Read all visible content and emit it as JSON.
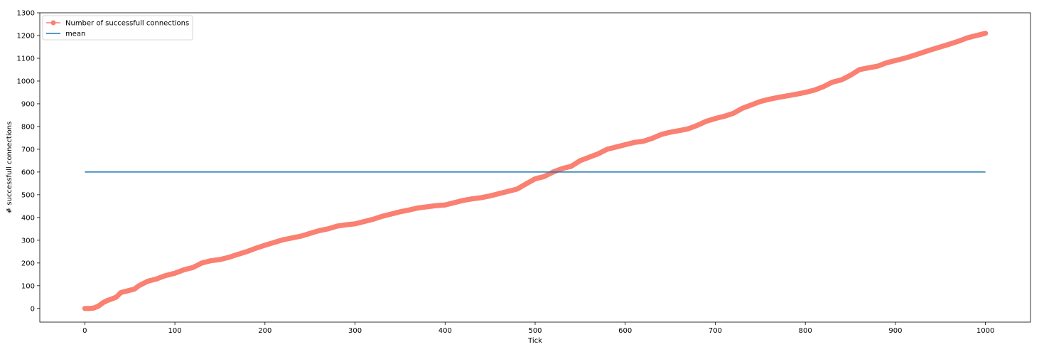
{
  "chart_data": {
    "type": "line",
    "title": "",
    "xlabel": "Tick",
    "ylabel": "# successfull connections",
    "xlim": [
      -50,
      1050
    ],
    "ylim": [
      -60,
      1300
    ],
    "x_ticks": [
      0,
      100,
      200,
      300,
      400,
      500,
      600,
      700,
      800,
      900,
      1000
    ],
    "y_ticks": [
      0,
      100,
      200,
      300,
      400,
      500,
      600,
      700,
      800,
      900,
      1000,
      1100,
      1200,
      1300
    ],
    "grid": false,
    "legend_position": "upper left",
    "series": [
      {
        "name": "Number of successfull connections",
        "kind": "line-with-markers",
        "color": "#fa8072",
        "x": [
          0,
          5,
          10,
          15,
          20,
          25,
          30,
          35,
          40,
          45,
          50,
          55,
          60,
          65,
          70,
          75,
          80,
          85,
          90,
          95,
          100,
          110,
          120,
          130,
          140,
          150,
          160,
          170,
          180,
          190,
          200,
          210,
          220,
          230,
          240,
          250,
          260,
          270,
          280,
          290,
          300,
          310,
          320,
          330,
          340,
          350,
          360,
          370,
          380,
          390,
          400,
          410,
          420,
          430,
          440,
          450,
          460,
          470,
          480,
          490,
          500,
          510,
          520,
          530,
          540,
          550,
          560,
          570,
          580,
          590,
          600,
          610,
          620,
          630,
          640,
          650,
          660,
          670,
          680,
          690,
          700,
          710,
          720,
          730,
          740,
          750,
          760,
          770,
          780,
          790,
          800,
          810,
          820,
          830,
          840,
          850,
          860,
          870,
          880,
          890,
          900,
          910,
          920,
          930,
          940,
          950,
          960,
          970,
          980,
          990,
          1000
        ],
        "y": [
          0,
          0,
          2,
          10,
          25,
          35,
          42,
          50,
          70,
          75,
          80,
          85,
          100,
          110,
          120,
          125,
          130,
          138,
          145,
          150,
          155,
          170,
          180,
          200,
          210,
          215,
          225,
          238,
          250,
          265,
          278,
          290,
          302,
          310,
          318,
          330,
          342,
          350,
          362,
          368,
          372,
          382,
          392,
          405,
          415,
          425,
          433,
          442,
          447,
          452,
          455,
          465,
          475,
          482,
          487,
          495,
          505,
          515,
          525,
          548,
          570,
          580,
          600,
          615,
          625,
          650,
          665,
          680,
          700,
          710,
          720,
          730,
          735,
          748,
          765,
          775,
          782,
          790,
          805,
          823,
          835,
          845,
          858,
          880,
          895,
          910,
          920,
          928,
          935,
          942,
          950,
          960,
          975,
          995,
          1005,
          1025,
          1050,
          1058,
          1065,
          1080,
          1090,
          1100,
          1112,
          1125,
          1138,
          1150,
          1162,
          1175,
          1190,
          1200,
          1210
        ]
      },
      {
        "name": "mean",
        "kind": "line",
        "color": "#1f77b4",
        "x": [
          0,
          1000
        ],
        "y": [
          600,
          600
        ]
      }
    ]
  }
}
